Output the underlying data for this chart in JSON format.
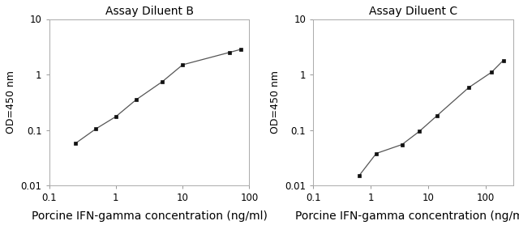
{
  "chart1": {
    "title": "Assay Diluent B",
    "x": [
      0.25,
      0.5,
      1.0,
      2.0,
      5.0,
      10.0,
      50.0,
      75.0
    ],
    "y": [
      0.058,
      0.105,
      0.175,
      0.35,
      0.75,
      1.5,
      2.5,
      2.85
    ],
    "xlabel": "Porcine IFN-gamma concentration (ng/ml)",
    "ylabel": "OD=450 nm",
    "xlim": [
      0.1,
      100
    ],
    "ylim": [
      0.01,
      10
    ],
    "xtick_vals": [
      0.1,
      1,
      10,
      100
    ],
    "xtick_labels": [
      "0.1",
      "1",
      "10",
      "100"
    ],
    "ytick_vals": [
      0.01,
      0.1,
      1,
      10
    ],
    "ytick_labels": [
      "0.01",
      "0.1",
      "1",
      "10"
    ]
  },
  "chart2": {
    "title": "Assay Diluent C",
    "x": [
      0.625,
      1.25,
      3.5,
      7.0,
      14.0,
      50.0,
      125.0,
      200.0
    ],
    "y": [
      0.015,
      0.038,
      0.055,
      0.095,
      0.18,
      0.58,
      1.1,
      1.8
    ],
    "xlabel": "Porcine IFN-gamma concentration (ng/ml)",
    "ylabel": "OD=450 nm",
    "xlim": [
      0.1,
      300
    ],
    "ylim": [
      0.01,
      10
    ],
    "xtick_vals": [
      0.1,
      1,
      10,
      100
    ],
    "xtick_labels": [
      "0.1",
      "1",
      "10",
      "100"
    ],
    "ytick_vals": [
      0.01,
      0.1,
      1,
      10
    ],
    "ytick_labels": [
      "0.01",
      "0.1",
      "1",
      "10"
    ]
  },
  "line_color": "#555555",
  "marker_color": "#111111",
  "background_color": "#ffffff",
  "title_fontsize": 10,
  "label_fontsize": 9,
  "tick_fontsize": 8.5,
  "shared_xlabel": "Porcine IFN-gamma concentration (ng/ml)",
  "shared_xlabel_fontsize": 10
}
